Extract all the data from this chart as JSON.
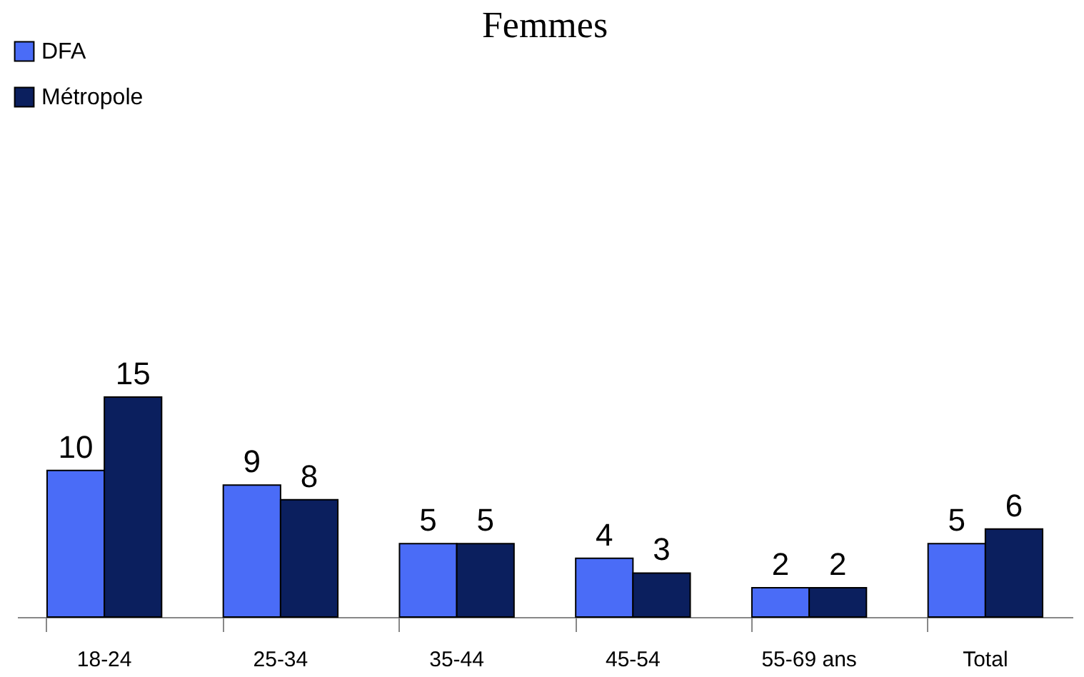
{
  "chart_data": {
    "type": "bar",
    "title": "Femmes",
    "categories": [
      "18-24",
      "25-34",
      "35-44",
      "45-54",
      "55-69 ans",
      "Total"
    ],
    "series": [
      {
        "name": "DFA",
        "color": "#4a6cf7",
        "values": [
          10,
          9,
          5,
          4,
          2,
          5
        ]
      },
      {
        "name": "Métropole",
        "color": "#0b1f5e",
        "values": [
          15,
          8,
          5,
          3,
          2,
          6
        ]
      }
    ],
    "data_labels": true,
    "grid": false,
    "legend": "top left"
  }
}
